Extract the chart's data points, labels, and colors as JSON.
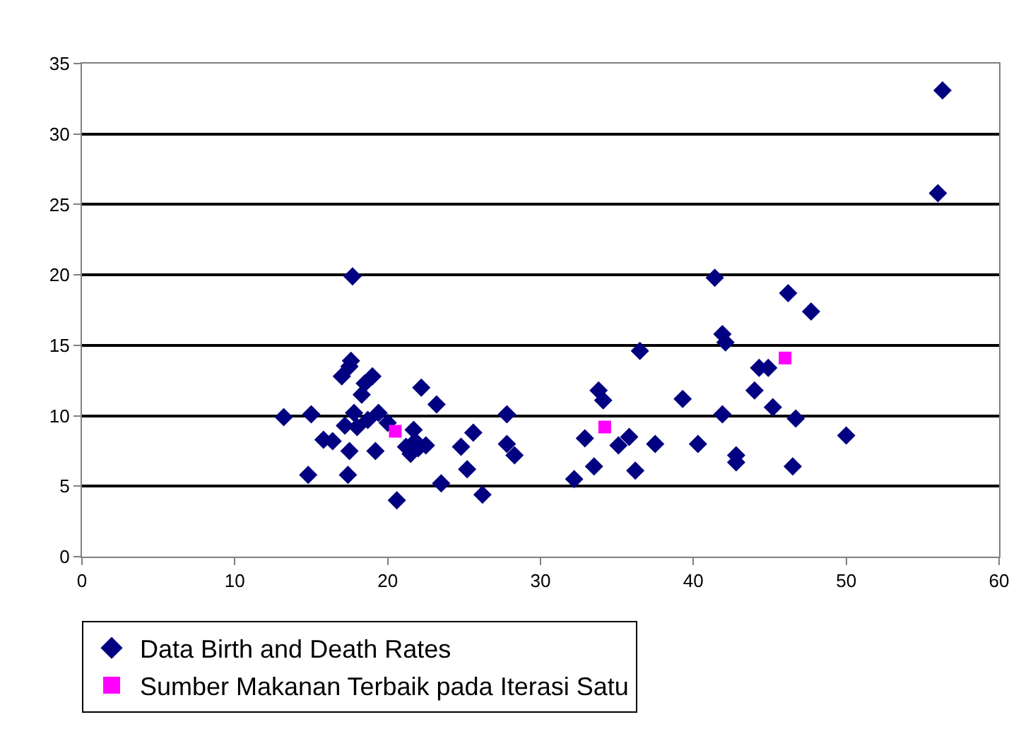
{
  "chart_data": {
    "type": "scatter",
    "xlim": [
      0,
      60
    ],
    "xticks": [
      0,
      10,
      20,
      30,
      40,
      50,
      60
    ],
    "ylim": [
      0,
      35
    ],
    "yticks": [
      0,
      5,
      10,
      15,
      20,
      25,
      30,
      35
    ],
    "grid": "y",
    "legend": "bottom",
    "series": [
      {
        "name": "Data Birth and Death Rates",
        "color": "#000080",
        "marker": "diamond",
        "x": [
          13.2,
          14.8,
          15,
          15.8,
          16.4,
          17,
          17.2,
          17.4,
          17.5,
          17.5,
          17.6,
          17.7,
          17.8,
          18,
          18.3,
          18.5,
          18.7,
          19,
          19.2,
          19.4,
          20,
          20.6,
          21.2,
          21.5,
          21.7,
          21.8,
          22,
          22.5,
          22.2,
          23.2,
          23.5,
          24.8,
          25.2,
          25.6,
          26.2,
          27.8,
          27.8,
          28.3,
          32.2,
          32.9,
          33.5,
          33.8,
          34.1,
          35.1,
          35.8,
          36.2,
          36.5,
          37.5,
          39.3,
          40.3,
          41.4,
          41.9,
          42.1,
          41.9,
          42.8,
          42.8,
          44,
          44.3,
          44.9,
          45.2,
          46.2,
          46.5,
          46.7,
          47.7,
          50,
          56,
          56.3
        ],
        "values": [
          9.9,
          5.8,
          10.1,
          8.3,
          8.2,
          12.8,
          9.3,
          5.8,
          7.5,
          13.5,
          13.9,
          19.9,
          10.2,
          9.2,
          11.5,
          12.3,
          9.7,
          12.8,
          7.5,
          10.2,
          9.5,
          4,
          7.8,
          7.3,
          9,
          8.2,
          7.7,
          7.9,
          12,
          10.8,
          5.2,
          7.8,
          6.2,
          8.8,
          4.4,
          10.1,
          8,
          7.2,
          5.5,
          8.4,
          6.4,
          11.8,
          11.1,
          7.9,
          8.5,
          6.1,
          14.6,
          8,
          11.2,
          8,
          19.8,
          15.8,
          15.2,
          10.1,
          7.2,
          6.7,
          11.8,
          13.4,
          13.4,
          10.6,
          18.7,
          6.4,
          9.8,
          17.4,
          8.6,
          25.8,
          33.1
        ]
      },
      {
        "name": "Sumber Makanan Terbaik pada Iterasi Satu",
        "color": "#ff00ff",
        "marker": "square",
        "x": [
          20.5,
          34.2,
          46
        ],
        "values": [
          8.9,
          9.2,
          14.1
        ]
      }
    ]
  }
}
